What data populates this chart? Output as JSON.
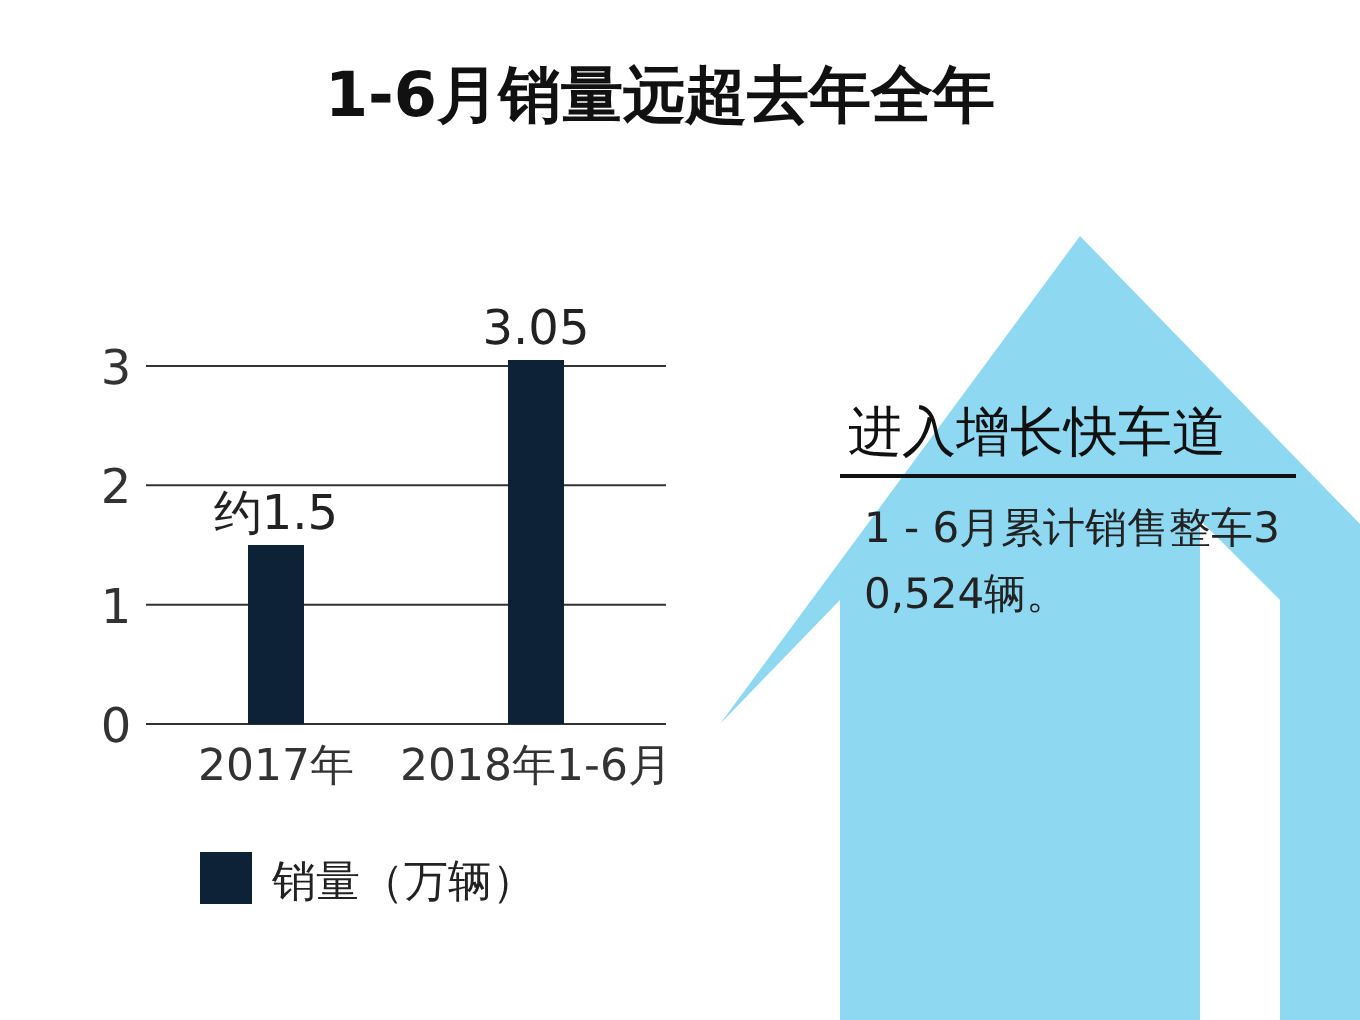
{
  "chart_data": {
    "type": "bar",
    "title": "1-6月销量远超去年全年",
    "categories": [
      "2017年",
      "2018年1-6月"
    ],
    "series": [
      {
        "name": "销量（万辆）",
        "color": "#0d2236",
        "values": [
          1.5,
          3.05
        ],
        "value_labels": [
          "约1.5",
          "3.05"
        ]
      }
    ],
    "ylim": [
      0,
      3.05
    ],
    "yticks": [
      0,
      1,
      2,
      3
    ],
    "grid": "y",
    "legend": "bottom",
    "annotations": [
      "进入增长快车道",
      "1 - 6月累计销售整车30,524辆。"
    ]
  }
}
